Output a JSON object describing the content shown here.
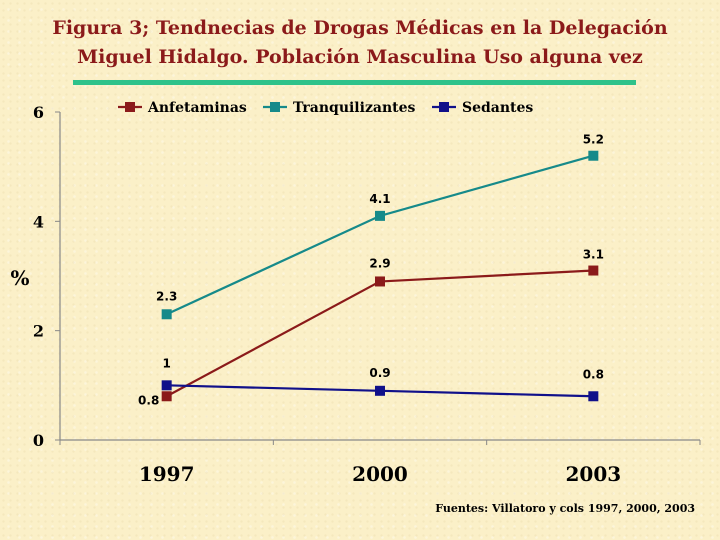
{
  "slide": {
    "title_line1": "Figura 3; Tendnecias de Drogas Médicas en  la Delegación",
    "title_line2": "Miguel Hidalgo. Población Masculina Uso alguna vez",
    "source": "Fuentes: Villatoro y cols 1997, 2000, 2003"
  },
  "chart_data": {
    "type": "line",
    "title": "",
    "xlabel": "",
    "ylabel": "%",
    "categories": [
      "1997",
      "2000",
      "2003"
    ],
    "ylim": [
      0,
      6
    ],
    "yticks": [
      0,
      2,
      4,
      6
    ],
    "grid": false,
    "legend_position": "top",
    "series": [
      {
        "name": "Anfetaminas",
        "color": "#8b1a1a",
        "values": [
          0.8,
          2.9,
          3.1
        ],
        "labels": [
          "0.8",
          "2.9",
          "3.1"
        ]
      },
      {
        "name": "Tranquilizantes",
        "color": "#168a8a",
        "values": [
          2.3,
          4.1,
          5.2
        ],
        "labels": [
          "2.3",
          "4.1",
          "5.2"
        ]
      },
      {
        "name": "Sedantes",
        "color": "#10108a",
        "values": [
          1,
          0.9,
          0.8
        ],
        "labels": [
          "1",
          "0.9",
          "0.8"
        ]
      }
    ]
  }
}
